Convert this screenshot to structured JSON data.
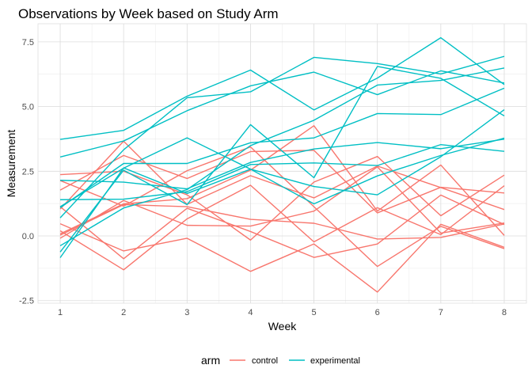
{
  "chart_data": {
    "type": "line",
    "title": "Observations by Week based on Study Arm",
    "xlabel": "Week",
    "ylabel": "Measurement",
    "x": [
      1,
      2,
      3,
      4,
      5,
      6,
      7,
      8
    ],
    "xlim": [
      0.65,
      8.35
    ],
    "ylim": [
      -2.6,
      8.2
    ],
    "x_ticks": [
      1,
      2,
      3,
      4,
      5,
      6,
      7,
      8
    ],
    "y_ticks": [
      -2.5,
      0.0,
      2.5,
      5.0,
      7.5
    ],
    "y_tick_labels": [
      "-2.5",
      "0.0",
      "2.5",
      "5.0",
      "7.5"
    ],
    "grid": true,
    "legend": {
      "title": "arm",
      "position": "bottom",
      "entries": [
        {
          "label": "control",
          "color": "#F8766D"
        },
        {
          "label": "experimental",
          "color": "#00BFC4"
        }
      ]
    },
    "series": [
      {
        "group": "control",
        "color": "#F8766D",
        "values": [
          0.2,
          -1.31,
          0.66,
          1.96,
          -0.23,
          1.09,
          0.05,
          1.94
        ]
      },
      {
        "group": "control",
        "color": "#F8766D",
        "values": [
          1.13,
          -0.88,
          1.07,
          0.17,
          -0.83,
          -0.31,
          1.58,
          0.44
        ]
      },
      {
        "group": "control",
        "color": "#F8766D",
        "values": [
          1.77,
          3.11,
          2.22,
          3.26,
          3.31,
          0.89,
          1.88,
          1.66
        ]
      },
      {
        "group": "control",
        "color": "#F8766D",
        "values": [
          1.04,
          3.66,
          1.22,
          2.33,
          1.47,
          2.7,
          1.87,
          1.02
        ]
      },
      {
        "group": "control",
        "color": "#F8766D",
        "values": [
          0.47,
          -0.58,
          -0.09,
          -1.37,
          -0.31,
          -2.17,
          0.45,
          -0.44
        ]
      },
      {
        "group": "control",
        "color": "#F8766D",
        "values": [
          2.37,
          2.5,
          1.59,
          -0.16,
          2.08,
          3.07,
          0.78,
          2.35
        ]
      },
      {
        "group": "control",
        "color": "#F8766D",
        "values": [
          0.03,
          1.21,
          1.13,
          0.64,
          0.49,
          -0.12,
          -0.06,
          0.46
        ]
      },
      {
        "group": "control",
        "color": "#F8766D",
        "values": [
          -0.09,
          1.37,
          0.41,
          0.38,
          0.96,
          2.67,
          0.11,
          0.5
        ]
      },
      {
        "group": "control",
        "color": "#F8766D",
        "values": [
          0.08,
          1.24,
          1.44,
          2.54,
          4.26,
          0.96,
          2.74,
          0.02
        ]
      },
      {
        "group": "control",
        "color": "#F8766D",
        "values": [
          2.14,
          1.15,
          2.52,
          3.44,
          1.13,
          -1.18,
          0.37,
          -0.49
        ]
      },
      {
        "group": "experimental",
        "color": "#00BFC4",
        "values": [
          3.05,
          3.67,
          4.84,
          5.8,
          6.33,
          5.46,
          6.38,
          5.91
        ]
      },
      {
        "group": "experimental",
        "color": "#00BFC4",
        "values": [
          -0.84,
          2.63,
          1.64,
          2.58,
          1.24,
          2.32,
          3.11,
          3.78
        ]
      },
      {
        "group": "experimental",
        "color": "#00BFC4",
        "values": [
          2.15,
          2.08,
          1.82,
          2.84,
          3.36,
          3.61,
          3.37,
          3.74
        ]
      },
      {
        "group": "experimental",
        "color": "#00BFC4",
        "values": [
          -0.62,
          2.54,
          1.21,
          4.3,
          2.25,
          6.55,
          6.09,
          4.64
        ]
      },
      {
        "group": "experimental",
        "color": "#00BFC4",
        "values": [
          0.7,
          3.33,
          5.34,
          5.57,
          6.9,
          6.66,
          6.26,
          6.94
        ]
      },
      {
        "group": "experimental",
        "color": "#00BFC4",
        "values": [
          3.73,
          4.08,
          5.4,
          6.41,
          4.87,
          6.1,
          7.66,
          5.85
        ]
      },
      {
        "group": "experimental",
        "color": "#00BFC4",
        "values": [
          1.09,
          2.8,
          2.8,
          3.6,
          3.79,
          4.73,
          4.69,
          5.71
        ]
      },
      {
        "group": "experimental",
        "color": "#00BFC4",
        "values": [
          -0.38,
          1.08,
          1.79,
          3.49,
          4.47,
          5.83,
          6.01,
          6.49
        ]
      },
      {
        "group": "experimental",
        "color": "#00BFC4",
        "values": [
          1.4,
          1.42,
          1.71,
          2.76,
          2.82,
          2.72,
          3.53,
          3.27
        ]
      },
      {
        "group": "experimental",
        "color": "#00BFC4",
        "values": [
          1.13,
          2.62,
          3.79,
          2.58,
          1.91,
          1.59,
          3.06,
          4.88
        ]
      }
    ]
  }
}
